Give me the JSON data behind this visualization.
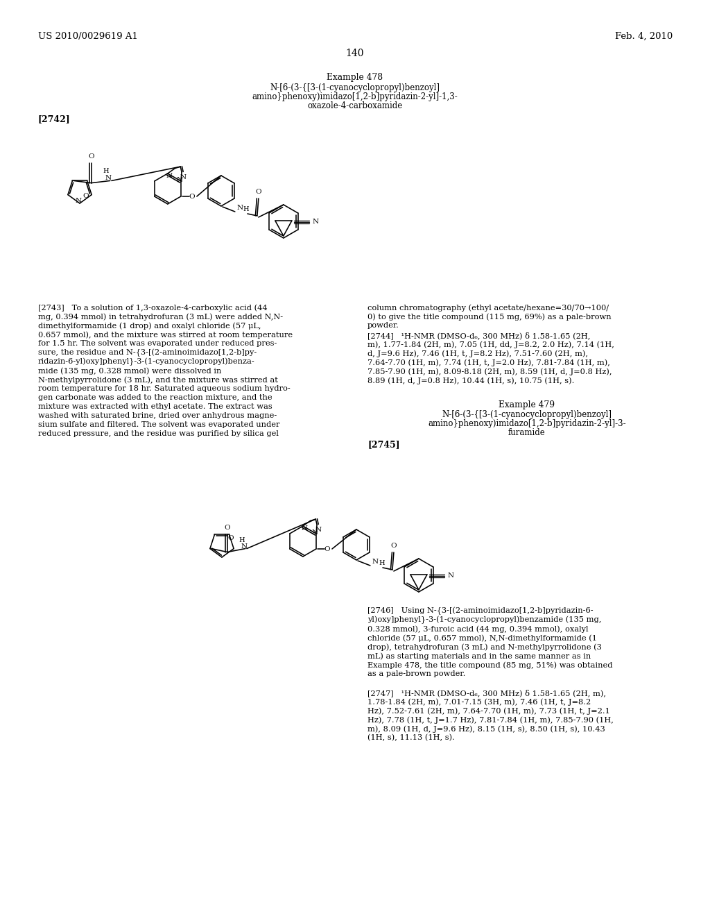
{
  "page_number": "140",
  "header_left": "US 2010/0029619 A1",
  "header_right": "Feb. 4, 2010",
  "bg": "#ffffff",
  "ex478_title": "Example 478",
  "ex478_sub1": "N-[6-(3-{[3-(1-cyanocyclopropyl)benzoyl]",
  "ex478_sub2": "amino}phenoxy)imidazo[1,2-b]pyridazin-2-yl]-1,3-",
  "ex478_sub3": "oxazole-4-carboxamide",
  "ex478_tag": "[2742]",
  "ex479_title": "Example 479",
  "ex479_sub1": "N-[6-(3-{[3-(1-cyanocyclopropyl)benzoyl]",
  "ex479_sub2": "amino}phenoxy)imidazo[1,2-b]pyridazin-2-yl]-3-",
  "ex479_sub3": "furamide",
  "ex479_tag": "[2745]",
  "p2743_col1": [
    "[2743]   To a solution of 1,3-oxazole-4-carboxylic acid (44",
    "mg, 0.394 mmol) in tetrahydrofuran (3 mL) were added N,N-",
    "dimethylformamide (1 drop) and oxalyl chloride (57 μL,",
    "0.657 mmol), and the mixture was stirred at room temperature",
    "for 1.5 hr. The solvent was evaporated under reduced pres-",
    "sure, the residue and N-{3-[(2-aminoimidazo[1,2-b]py-",
    "ridazin-6-yl)oxy]phenyl}-3-(1-cyanocyclopropyl)benza-",
    "mide (135 mg, 0.328 mmol) were dissolved in",
    "N-methylpyrrolidone (3 mL), and the mixture was stirred at",
    "room temperature for 18 hr. Saturated aqueous sodium hydro-",
    "gen carbonate was added to the reaction mixture, and the",
    "mixture was extracted with ethyl acetate. The extract was",
    "washed with saturated brine, dried over anhydrous magne-",
    "sium sulfate and filtered. The solvent was evaporated under",
    "reduced pressure, and the residue was purified by silica gel"
  ],
  "p2743_col2_lines": [
    "column chromatography (ethyl acetate/hexane=30/70→100/",
    "0) to give the title compound (115 mg, 69%) as a pale-brown",
    "powder."
  ],
  "p2744_lines": [
    "[2744]   ¹H-NMR (DMSO-d₆, 300 MHz) δ 1.58-1.65 (2H,",
    "m), 1.77-1.84 (2H, m), 7.05 (1H, dd, J=8.2, 2.0 Hz), 7.14 (1H,",
    "d, J=9.6 Hz), 7.46 (1H, t, J=8.2 Hz), 7.51-7.60 (2H, m),",
    "7.64-7.70 (1H, m), 7.74 (1H, t, J=2.0 Hz), 7.81-7.84 (1H, m),",
    "7.85-7.90 (1H, m), 8.09-8.18 (2H, m), 8.59 (1H, d, J=0.8 Hz),",
    "8.89 (1H, d, J=0.8 Hz), 10.44 (1H, s), 10.75 (1H, s)."
  ],
  "p2746_col2_lines": [
    "[2746]   Using N-{3-[(2-aminoimidazo[1,2-b]pyridazin-6-",
    "yl)oxy]phenyl}-3-(1-cyanocyclopropyl)benzamide (135 mg,",
    "0.328 mmol), 3-furoic acid (44 mg, 0.394 mmol), oxalyl",
    "chloride (57 μL, 0.657 mmol), N,N-dimethylformamide (1",
    "drop), tetrahydrofuran (3 mL) and N-methylpyrrolidone (3",
    "mL) as starting materials and in the same manner as in",
    "Example 478, the title compound (85 mg, 51%) was obtained",
    "as a pale-brown powder."
  ],
  "p2747_lines": [
    "[2747]   ¹H-NMR (DMSO-d₆, 300 MHz) δ 1.58-1.65 (2H, m),",
    "1.78-1.84 (2H, m), 7.01-7.15 (3H, m), 7.46 (1H, t, J=8.2",
    "Hz), 7.52-7.61 (2H, m), 7.64-7.70 (1H, m), 7.73 (1H, t, J=2.1",
    "Hz), 7.78 (1H, t, J=1.7 Hz), 7.81-7.84 (1H, m), 7.85-7.90 (1H,",
    "m), 8.09 (1H, d, J=9.6 Hz), 8.15 (1H, s), 8.50 (1H, s), 10.43",
    "(1H, s), 11.13 (1H, s)."
  ]
}
